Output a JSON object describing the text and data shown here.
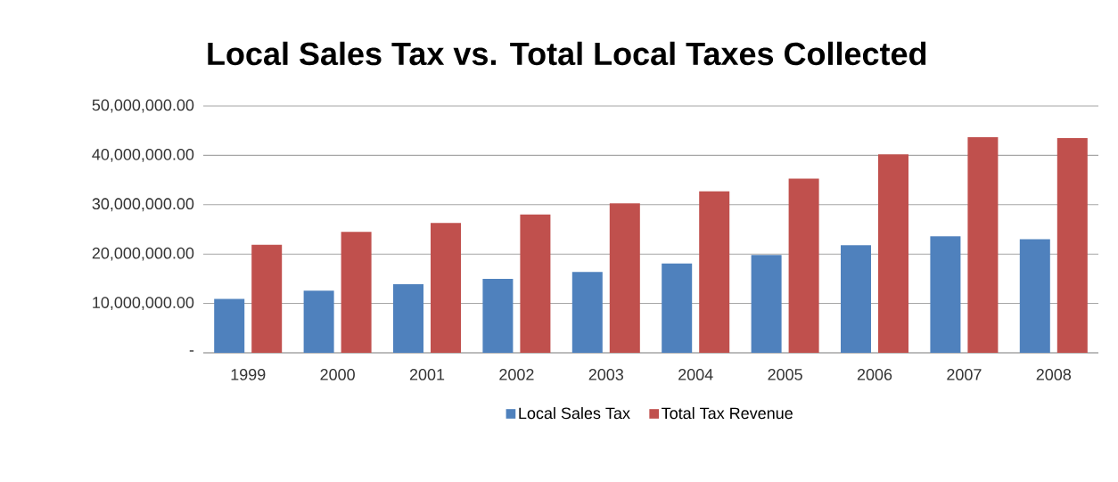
{
  "chart_data": {
    "type": "bar",
    "title": "Local Sales Tax vs. Total Local Taxes Collected",
    "categories": [
      "1999",
      "2000",
      "2001",
      "2002",
      "2003",
      "2004",
      "2005",
      "2006",
      "2007",
      "2008"
    ],
    "series": [
      {
        "name": "Local Sales Tax",
        "color": "#4f81bd",
        "values": [
          10900000,
          12600000,
          13900000,
          15000000,
          16400000,
          18100000,
          19800000,
          21800000,
          23600000,
          23000000
        ]
      },
      {
        "name": "Total Tax Revenue",
        "color": "#c0504d",
        "values": [
          21900000,
          24500000,
          26300000,
          28000000,
          30300000,
          32700000,
          35300000,
          40200000,
          43700000,
          43500000
        ]
      }
    ],
    "ylim": [
      0,
      50000000
    ],
    "yticks": [
      {
        "value": 0,
        "label": "-"
      },
      {
        "value": 10000000,
        "label": "10,000,000.00"
      },
      {
        "value": 20000000,
        "label": "20,000,000.00"
      },
      {
        "value": 30000000,
        "label": "30,000,000.00"
      },
      {
        "value": 40000000,
        "label": "40,000,000.00"
      },
      {
        "value": 50000000,
        "label": "50,000,000.00"
      }
    ],
    "grid": "y",
    "legend": "bottom"
  }
}
